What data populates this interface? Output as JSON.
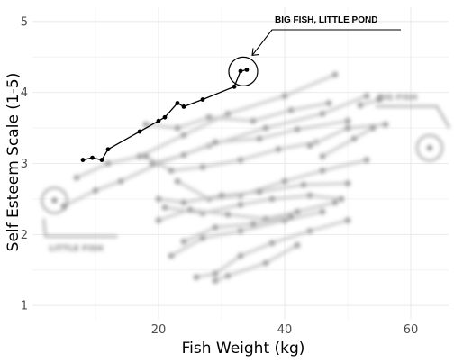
{
  "chart_data": {
    "type": "line",
    "title": "",
    "xlabel": "Fish Weight (kg)",
    "ylabel": "Self Esteem Scale (1-5)",
    "xlim": [
      0,
      66
    ],
    "ylim": [
      0.8,
      5.2
    ],
    "x_ticks": [
      20,
      40,
      60
    ],
    "y_ticks": [
      1,
      2,
      3,
      4,
      5
    ],
    "grid": true,
    "legend": "none",
    "highlight_series": {
      "values": [
        {
          "x": 8,
          "y": 3.05
        },
        {
          "x": 9.5,
          "y": 3.08
        },
        {
          "x": 11,
          "y": 3.05
        },
        {
          "x": 12,
          "y": 3.2
        },
        {
          "x": 17,
          "y": 3.45
        },
        {
          "x": 20,
          "y": 3.6
        },
        {
          "x": 21,
          "y": 3.65
        },
        {
          "x": 23,
          "y": 3.85
        },
        {
          "x": 24,
          "y": 3.8
        },
        {
          "x": 27,
          "y": 3.9
        },
        {
          "x": 32,
          "y": 4.08
        },
        {
          "x": 33,
          "y": 4.3
        },
        {
          "x": 34,
          "y": 4.32
        }
      ]
    },
    "background_series": [
      {
        "values": [
          {
            "x": 7,
            "y": 2.8
          },
          {
            "x": 12,
            "y": 3.0
          },
          {
            "x": 17,
            "y": 3.1
          },
          {
            "x": 24,
            "y": 3.4
          },
          {
            "x": 31,
            "y": 3.7
          },
          {
            "x": 40,
            "y": 3.95
          },
          {
            "x": 48,
            "y": 4.25
          }
        ]
      },
      {
        "values": [
          {
            "x": 5,
            "y": 2.4
          },
          {
            "x": 10,
            "y": 2.62
          },
          {
            "x": 14,
            "y": 2.75
          },
          {
            "x": 20,
            "y": 3.0
          },
          {
            "x": 28,
            "y": 3.25
          },
          {
            "x": 37,
            "y": 3.5
          },
          {
            "x": 46,
            "y": 3.7
          },
          {
            "x": 53,
            "y": 3.95
          }
        ]
      },
      {
        "values": [
          {
            "x": 18,
            "y": 3.55
          },
          {
            "x": 23,
            "y": 3.5
          },
          {
            "x": 28,
            "y": 3.65
          },
          {
            "x": 35,
            "y": 3.6
          },
          {
            "x": 41,
            "y": 3.75
          },
          {
            "x": 47,
            "y": 3.85
          }
        ]
      },
      {
        "values": [
          {
            "x": 19,
            "y": 3.0
          },
          {
            "x": 24,
            "y": 3.12
          },
          {
            "x": 29,
            "y": 3.3
          },
          {
            "x": 36,
            "y": 3.35
          },
          {
            "x": 42,
            "y": 3.48
          },
          {
            "x": 50,
            "y": 3.6
          }
        ]
      },
      {
        "values": [
          {
            "x": 18,
            "y": 3.1
          },
          {
            "x": 22,
            "y": 2.9
          },
          {
            "x": 27,
            "y": 2.95
          },
          {
            "x": 33,
            "y": 3.05
          },
          {
            "x": 39,
            "y": 3.2
          },
          {
            "x": 45,
            "y": 3.3
          }
        ]
      },
      {
        "values": [
          {
            "x": 23,
            "y": 2.75
          },
          {
            "x": 28,
            "y": 2.5
          },
          {
            "x": 33,
            "y": 2.55
          },
          {
            "x": 40,
            "y": 2.75
          },
          {
            "x": 46,
            "y": 2.9
          },
          {
            "x": 53,
            "y": 3.05
          }
        ]
      },
      {
        "values": [
          {
            "x": 20,
            "y": 2.5
          },
          {
            "x": 24,
            "y": 2.45
          },
          {
            "x": 30,
            "y": 2.55
          },
          {
            "x": 36,
            "y": 2.6
          },
          {
            "x": 43,
            "y": 2.7
          },
          {
            "x": 50,
            "y": 2.72
          }
        ]
      },
      {
        "values": [
          {
            "x": 21,
            "y": 2.38
          },
          {
            "x": 27,
            "y": 2.3
          },
          {
            "x": 33,
            "y": 2.42
          },
          {
            "x": 38,
            "y": 2.5
          },
          {
            "x": 44,
            "y": 2.55
          },
          {
            "x": 49,
            "y": 2.5
          }
        ]
      },
      {
        "values": [
          {
            "x": 20,
            "y": 2.2
          },
          {
            "x": 25,
            "y": 2.35
          },
          {
            "x": 31,
            "y": 2.28
          },
          {
            "x": 37,
            "y": 2.22
          },
          {
            "x": 42,
            "y": 2.32
          },
          {
            "x": 48,
            "y": 2.45
          }
        ]
      },
      {
        "values": [
          {
            "x": 22,
            "y": 1.7
          },
          {
            "x": 27,
            "y": 1.95
          },
          {
            "x": 33,
            "y": 2.05
          },
          {
            "x": 40,
            "y": 2.2
          },
          {
            "x": 46,
            "y": 2.32
          }
        ]
      },
      {
        "values": [
          {
            "x": 24,
            "y": 1.9
          },
          {
            "x": 29,
            "y": 2.1
          },
          {
            "x": 35,
            "y": 2.15
          },
          {
            "x": 41,
            "y": 2.25
          }
        ]
      },
      {
        "values": [
          {
            "x": 26,
            "y": 1.4
          },
          {
            "x": 29,
            "y": 1.45
          },
          {
            "x": 33,
            "y": 1.7
          },
          {
            "x": 38,
            "y": 1.88
          },
          {
            "x": 44,
            "y": 2.05
          },
          {
            "x": 50,
            "y": 2.2
          }
        ]
      },
      {
        "values": [
          {
            "x": 29,
            "y": 1.35
          },
          {
            "x": 31,
            "y": 1.42
          },
          {
            "x": 37,
            "y": 1.6
          },
          {
            "x": 42,
            "y": 1.85
          }
        ]
      },
      {
        "values": [
          {
            "x": 44,
            "y": 3.25
          },
          {
            "x": 50,
            "y": 3.5
          },
          {
            "x": 56,
            "y": 3.55
          }
        ]
      },
      {
        "values": [
          {
            "x": 46,
            "y": 3.1
          },
          {
            "x": 51,
            "y": 3.35
          },
          {
            "x": 54,
            "y": 3.5
          }
        ]
      },
      {
        "values": [
          {
            "x": 52,
            "y": 3.82
          },
          {
            "x": 55,
            "y": 3.9
          }
        ]
      }
    ],
    "annotations": [
      {
        "label": "BIG FISH, LITTLE POND",
        "legible": true
      },
      {
        "label": "BIG FISH",
        "legible": false
      },
      {
        "label": "LITTLE FISH",
        "legible": false
      }
    ]
  },
  "colors": {
    "highlight": "#000000",
    "background_series": "#c8c8c8",
    "grid": "#ebebeb"
  }
}
